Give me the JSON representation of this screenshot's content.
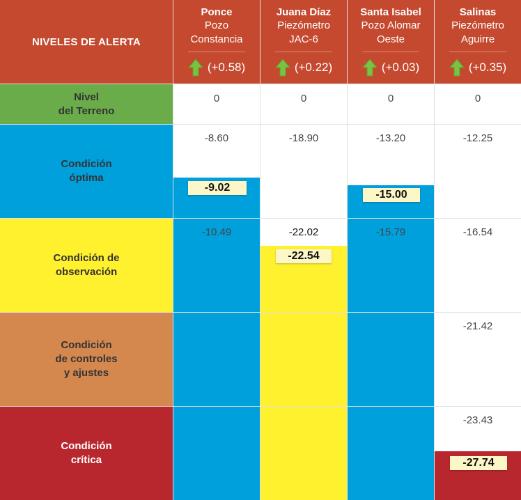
{
  "header": {
    "title": "NIVELES DE ALERTA",
    "stations": [
      {
        "name": "Ponce",
        "line1": "Pozo",
        "line2": "Constancia",
        "trend": "(+0.58)"
      },
      {
        "name": "Juana Díaz",
        "line1": "Piezómetro",
        "line2": "JAC-6",
        "trend": "(+0.22)"
      },
      {
        "name": "Santa Isabel",
        "line1": "Pozo Alomar",
        "line2": "Oeste",
        "trend": "(+0.03)"
      },
      {
        "name": "Salinas",
        "line1": "Piezómetro",
        "line2": "Aguirre",
        "trend": "(+0.35)"
      }
    ]
  },
  "levels": [
    {
      "label_lines": [
        "Nivel",
        "del Terreno"
      ],
      "color": "#6aab4a"
    },
    {
      "label_lines": [
        "Condición",
        "óptima"
      ],
      "color": "#00a0dc"
    },
    {
      "label_lines": [
        "Condición de",
        "observación"
      ],
      "color": "#fff12e"
    },
    {
      "label_lines": [
        "Condición",
        "de controles",
        "y ajustes"
      ],
      "color": "#d5884e"
    },
    {
      "label_lines": [
        "Condición",
        "crítica"
      ],
      "color": "#b8272e"
    }
  ],
  "thresholds": {
    "ponce": [
      "0",
      "-8.60",
      "-10.49"
    ],
    "juana_diaz": [
      "0",
      "-18.90",
      "-22.02"
    ],
    "santa_isabel": [
      "0",
      "-13.20",
      "-15.79"
    ],
    "salinas": [
      "0",
      "-12.25",
      "-16.54",
      "-21.42",
      "-23.43"
    ]
  },
  "current_levels": {
    "ponce": "-9.02",
    "juana_diaz": "-22.54",
    "santa_isabel": "-15.00",
    "salinas": "-27.74"
  },
  "colors": {
    "header": "#c4492f",
    "trend_arrow": "#7cc242",
    "highlight": "#fdf7c7"
  },
  "icons": {
    "trend": "up-arrow-icon"
  }
}
